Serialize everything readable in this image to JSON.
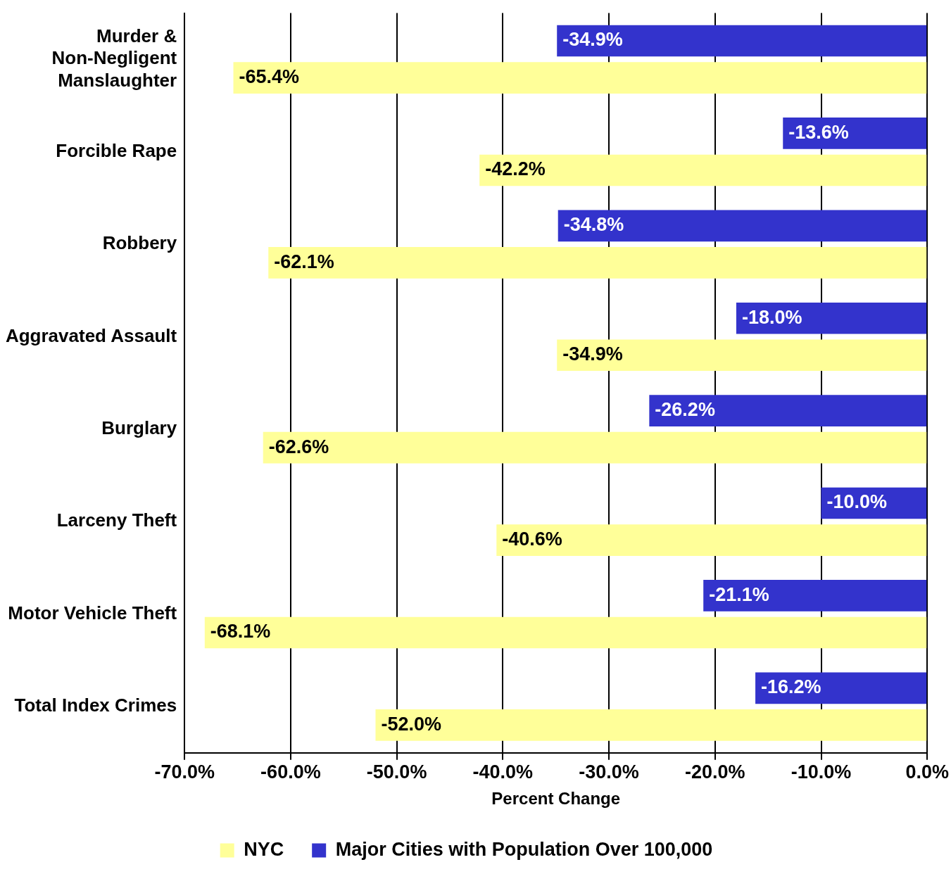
{
  "chart_data": {
    "type": "bar",
    "orientation": "horizontal",
    "xlabel": "Percent Change",
    "categories": [
      "Murder & Non-Negligent Manslaughter",
      "Forcible Rape",
      "Robbery",
      "Aggravated Assault",
      "Burglary",
      "Larceny Theft",
      "Motor Vehicle Theft",
      "Total Index Crimes"
    ],
    "series": [
      {
        "name": "NYC",
        "color": "#ffff99",
        "values": [
          -65.4,
          -42.2,
          -62.1,
          -34.9,
          -62.6,
          -40.6,
          -68.1,
          -52.0
        ],
        "value_labels": [
          "-65.4%",
          "-42.2%",
          "-62.1%",
          "-34.9%",
          "-62.6%",
          "-40.6%",
          "-68.1%",
          "-52.0%"
        ]
      },
      {
        "name": "Major Cities with Population Over 100,000",
        "color": "#3333cc",
        "values": [
          -34.9,
          -13.6,
          -34.8,
          -18.0,
          -26.2,
          -10.0,
          -21.1,
          -16.2
        ],
        "value_labels": [
          "-34.9%",
          "-13.6%",
          "-34.8%",
          "-18.0%",
          "-26.2%",
          "-10.0%",
          "-21.1%",
          "-16.2%"
        ]
      }
    ],
    "xlim": [
      -70,
      0
    ],
    "xticks": [
      {
        "value": -70,
        "label": "-70.0%"
      },
      {
        "value": -60,
        "label": "-60.0%"
      },
      {
        "value": -50,
        "label": "-50.0%"
      },
      {
        "value": -40,
        "label": "-40.0%"
      },
      {
        "value": -30,
        "label": "-30.0%"
      },
      {
        "value": -20,
        "label": "-20.0%"
      },
      {
        "value": -10,
        "label": "-10.0%"
      },
      {
        "value": 0,
        "label": "0.0%"
      }
    ],
    "grid": "x",
    "legend": "bottom"
  }
}
